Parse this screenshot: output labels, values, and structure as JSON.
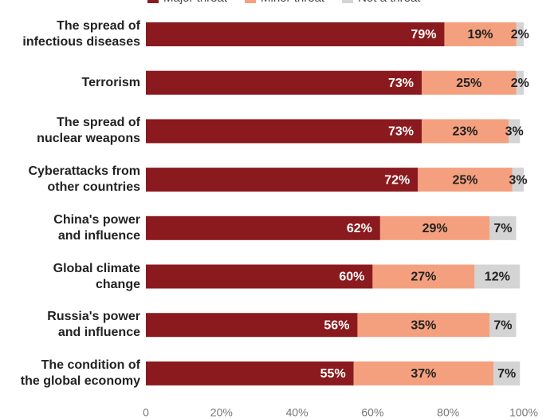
{
  "chart_data": {
    "type": "stacked_barh",
    "categories": [
      "The spread of\ninfectious diseases",
      "Terrorism",
      "The spread of\nnuclear weapons",
      "Cyberattacks from\nother countries",
      "China's power\nand influence",
      "Global climate\nchange",
      "Russia's power\nand influence",
      "The condition of\nthe global economy"
    ],
    "series": [
      {
        "name": "Major threat",
        "color": "#8b1a1e",
        "values": [
          79,
          73,
          73,
          72,
          62,
          60,
          56,
          55
        ],
        "value_labels": [
          "79%",
          "73%",
          "73%",
          "72%",
          "62%",
          "60%",
          "56%",
          "55%"
        ]
      },
      {
        "name": "Minor threat",
        "color": "#f4a07f",
        "values": [
          19,
          25,
          23,
          25,
          29,
          27,
          35,
          37
        ],
        "value_labels": [
          "19%",
          "25%",
          "23%",
          "25%",
          "29%",
          "27%",
          "35%",
          "37%"
        ]
      },
      {
        "name": "Not a threat",
        "color": "#d4d4d4",
        "values": [
          2,
          2,
          3,
          3,
          7,
          12,
          7,
          7
        ],
        "value_labels": [
          "2%",
          "2%",
          "3%",
          "3%",
          "7%",
          "12%",
          "7%",
          "7%"
        ]
      }
    ],
    "xlim": [
      0,
      100
    ],
    "xticks": [
      0,
      {
        "value": 20,
        "label": "20%"
      },
      {
        "value": 40,
        "label": "40%"
      },
      {
        "value": 60,
        "label": "60%"
      },
      {
        "value": 80,
        "label": "80%"
      },
      {
        "value": 100,
        "label": "100%"
      }
    ],
    "grid": false
  }
}
